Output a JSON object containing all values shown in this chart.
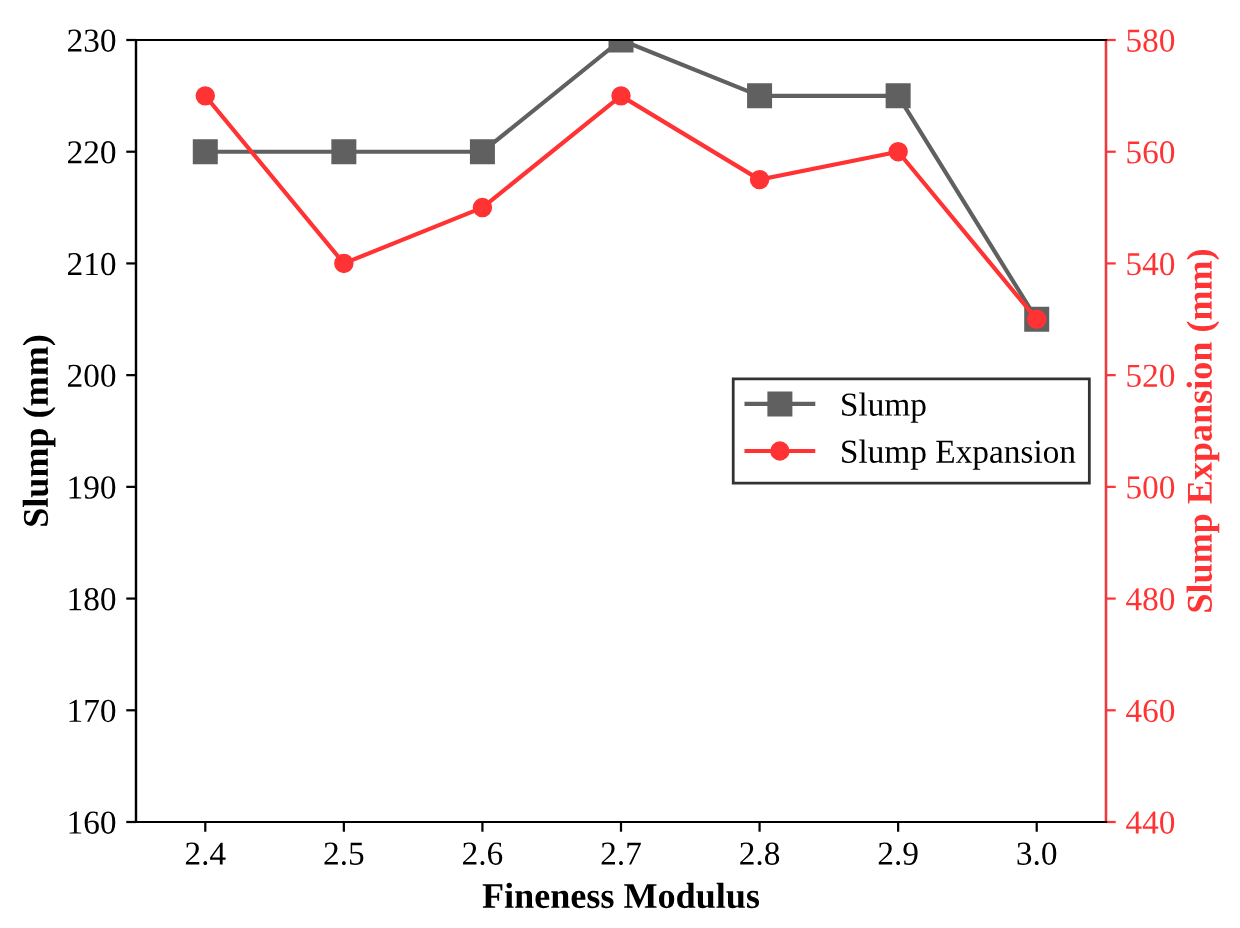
{
  "chart_data": {
    "type": "line",
    "xlabel": "Fineness Modulus",
    "ylabel": "Slump (mm)",
    "y2label": "Slump Expansion (mm)",
    "x": [
      2.4,
      2.5,
      2.6,
      2.7,
      2.8,
      2.9,
      3.0
    ],
    "series": [
      {
        "name": "Slump",
        "color": "#606060",
        "marker": "square",
        "values": [
          220,
          220,
          220,
          230,
          225,
          225,
          205
        ]
      },
      {
        "name": "Slump Expansion",
        "color": "#ff3333",
        "marker": "circle",
        "axis": "y2",
        "values": [
          570,
          540,
          550,
          570,
          555,
          560,
          530
        ]
      }
    ],
    "xlim": [
      2.35,
      3.05
    ],
    "xticks": [
      {
        "value": 2.4,
        "label": "2.4"
      },
      {
        "value": 2.5,
        "label": "2.5"
      },
      {
        "value": 2.6,
        "label": "2.6"
      },
      {
        "value": 2.7,
        "label": "2.7"
      },
      {
        "value": 2.8,
        "label": "2.8"
      },
      {
        "value": 2.9,
        "label": "2.9"
      },
      {
        "value": 3.0,
        "label": "3.0"
      }
    ],
    "ylim": [
      160,
      230
    ],
    "yticks": [
      160,
      170,
      180,
      190,
      200,
      210,
      220,
      230
    ],
    "y2lim": [
      440,
      580
    ],
    "y2ticks": [
      440,
      460,
      480,
      500,
      520,
      540,
      560,
      580
    ],
    "legend": "right",
    "grid": false,
    "line_style": "solid"
  }
}
